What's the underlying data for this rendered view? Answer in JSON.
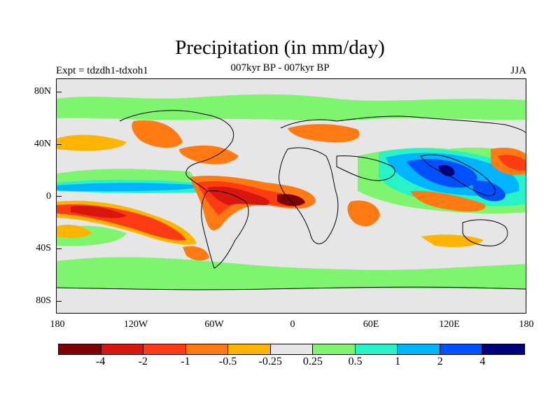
{
  "header": {
    "title": "Precipitation (in mm/day)",
    "subtitle": "007kyr BP - 007kyr BP",
    "left_label": "Expt = tdzdh1-tdxoh1",
    "right_label": "JJA"
  },
  "axes": {
    "lat_labels": [
      "80N",
      "40N",
      "0",
      "40S",
      "80S"
    ],
    "lon_labels": [
      "180",
      "120W",
      "60W",
      "0",
      "60E",
      "120E",
      "180"
    ]
  },
  "colorbar": {
    "colors": [
      "#7f0000",
      "#d7160e",
      "#ff3b14",
      "#ff7a12",
      "#ffb400",
      "#e6e6e6",
      "#7ff46e",
      "#28f2c8",
      "#00b4ff",
      "#0050ff",
      "#00007f"
    ],
    "labels": [
      "-4",
      "-2",
      "-1",
      "-0.5",
      "-0.25",
      "0.25",
      "0.5",
      "1",
      "2",
      "4"
    ]
  },
  "map": {
    "background_color": "#e6e6e6",
    "land_outline_color": "#000000"
  }
}
